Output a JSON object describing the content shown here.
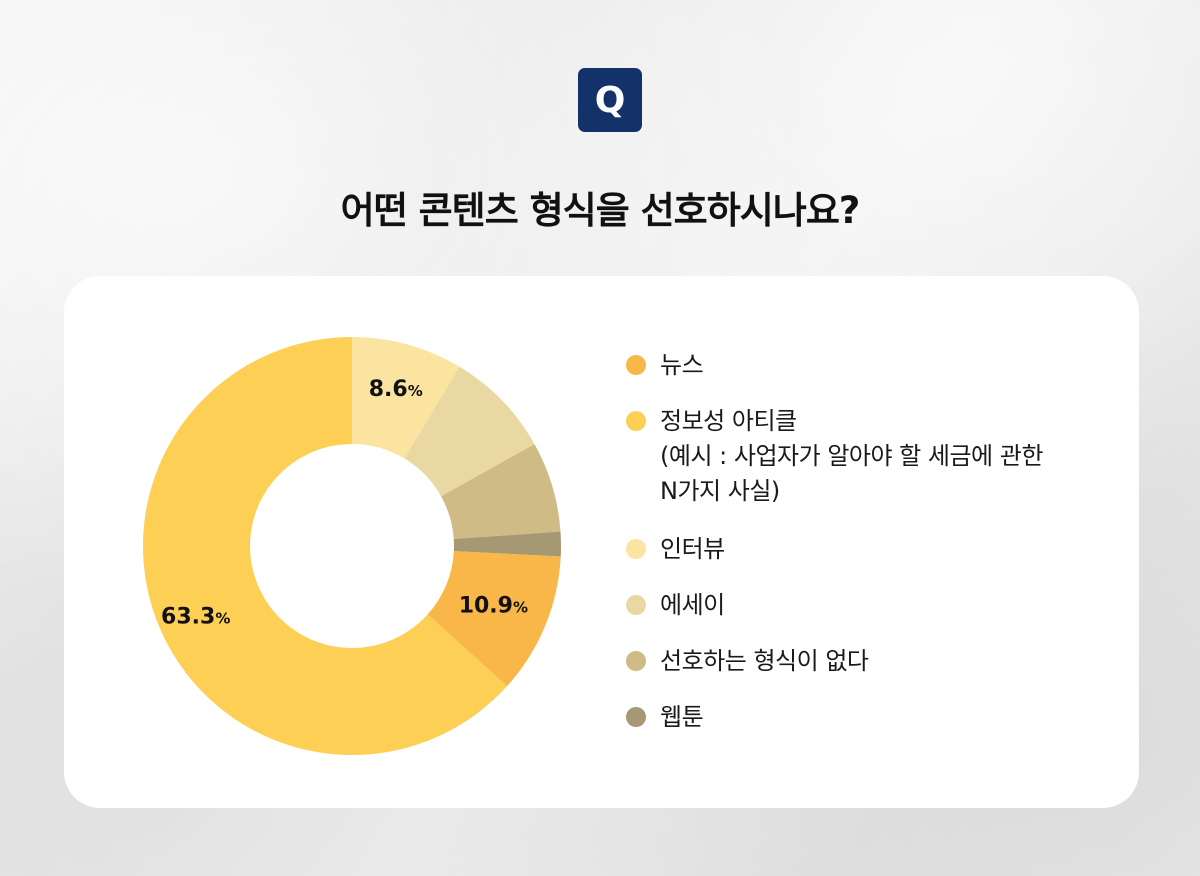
{
  "badge": "Q",
  "title": "어떤 콘텐츠 형식을 선호하시나요?",
  "chart_data": {
    "type": "pie",
    "donut": true,
    "title": "어떤 콘텐츠 형식을 선호하시나요?",
    "legend_position": "right",
    "slices": [
      {
        "name": "뉴스",
        "value": 10.9,
        "label": "10.9",
        "color": "#f8b748"
      },
      {
        "name": "정보성 아티클\n(예시 : 사업자가 알아야 할 세금에 관한\nN가지 사실)",
        "value": 63.3,
        "label": "63.3",
        "color": "#fdd055"
      },
      {
        "name": "인터뷰",
        "value": 8.6,
        "label": "8.6",
        "color": "#fbe4a0"
      },
      {
        "name": "에세이",
        "value": 8.3,
        "label": "",
        "color": "#ead8a2"
      },
      {
        "name": "선호하는 형식이 없다",
        "value": 7.0,
        "label": "",
        "color": "#cfbb85"
      },
      {
        "name": "웹툰",
        "value": 1.9,
        "label": "",
        "color": "#a69872"
      }
    ],
    "unit": "%"
  }
}
